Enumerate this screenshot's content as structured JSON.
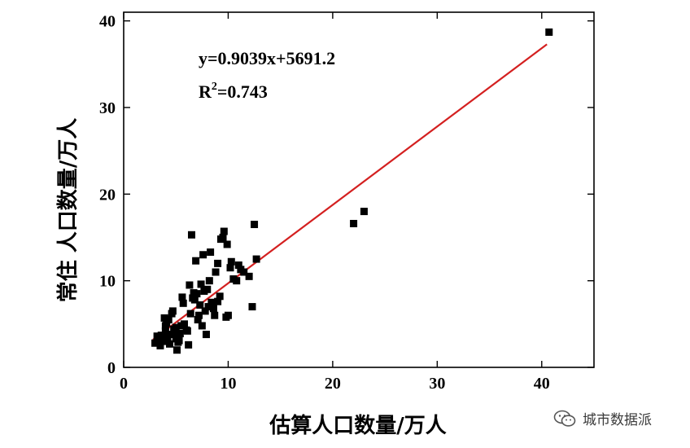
{
  "chart_data": {
    "type": "scatter",
    "xlabel": "估算人口数量/万人",
    "ylabel": "常住  人口数量/万人",
    "xlim": [
      0,
      45
    ],
    "ylim": [
      0,
      41
    ],
    "xticks": [
      0,
      10,
      20,
      30,
      40
    ],
    "yticks": [
      0,
      10,
      20,
      30,
      40
    ],
    "grid": false,
    "legend": "none",
    "annotations": {
      "equation": "y=0.9039x+5691.2",
      "r2_prefix": "R",
      "r2_sup": "2",
      "r2_value": "=0.743"
    },
    "fit_line": {
      "color": "#d42020",
      "x": [
        2.8,
        40.5
      ],
      "y": [
        3.2,
        37.3
      ]
    },
    "points": {
      "color": "#000000",
      "x": [
        3.0,
        3.3,
        3.5,
        3.2,
        3.8,
        4.0,
        4.2,
        4.5,
        4.3,
        4.8,
        5.0,
        5.2,
        4.6,
        5.5,
        5.1,
        5.4,
        5.8,
        6.0,
        6.2,
        4.0,
        3.6,
        3.9,
        4.4,
        4.7,
        5.0,
        5.3,
        6.5,
        6.8,
        7.0,
        7.2,
        6.3,
        6.6,
        7.5,
        7.8,
        8.0,
        8.2,
        7.3,
        6.9,
        7.1,
        7.6,
        8.4,
        8.6,
        9.0,
        9.2,
        8.8,
        7.9,
        8.1,
        9.5,
        9.8,
        10.0,
        10.2,
        10.5,
        11.0,
        11.5,
        12.0,
        12.3,
        12.5,
        12.7,
        9.6,
        9.3,
        8.3,
        7.7,
        6.4,
        6.7,
        9.0,
        9.9,
        10.8,
        7.4,
        8.7,
        6.1,
        5.7,
        4.9,
        4.1,
        3.4,
        5.6,
        10.3,
        11.2,
        22.0,
        23.0,
        40.7
      ],
      "y": [
        2.8,
        3.2,
        2.5,
        3.6,
        3.0,
        4.2,
        3.5,
        3.8,
        5.5,
        4.4,
        3.3,
        2.9,
        6.2,
        4.8,
        2.0,
        3.9,
        5.0,
        4.3,
        2.6,
        4.8,
        3.7,
        5.7,
        2.7,
        6.5,
        4.6,
        3.1,
        15.3,
        7.8,
        8.5,
        6.0,
        9.5,
        8.0,
        4.8,
        6.5,
        9.0,
        10.0,
        7.2,
        12.3,
        5.5,
        13.0,
        7.5,
        6.8,
        12.0,
        8.2,
        11.0,
        3.8,
        7.0,
        15.0,
        5.8,
        6.0,
        11.5,
        10.2,
        11.8,
        11.0,
        10.5,
        7.0,
        16.5,
        12.5,
        15.7,
        14.8,
        13.3,
        8.8,
        6.2,
        8.6,
        7.6,
        14.2,
        10.0,
        9.6,
        6.0,
        4.2,
        7.4,
        4.0,
        5.1,
        3.4,
        8.1,
        12.2,
        11.3,
        16.6,
        18.0,
        38.7
      ]
    }
  },
  "watermark": {
    "text": "城市数据派"
  }
}
